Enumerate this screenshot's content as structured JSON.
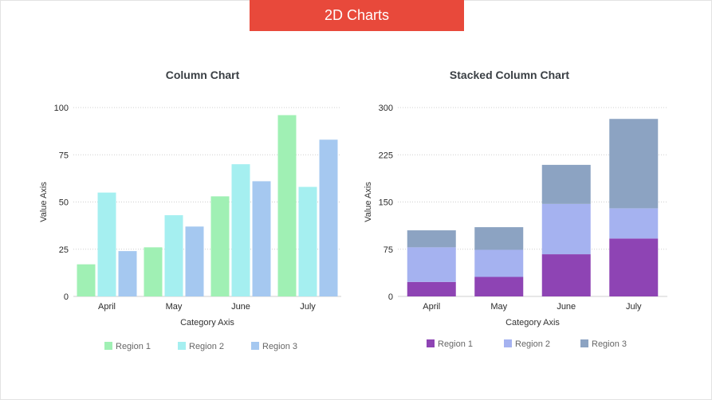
{
  "header": {
    "title": "2D Charts"
  },
  "chart_data": [
    {
      "type": "bar",
      "title": "Column Chart",
      "xlabel": "Category Axis",
      "ylabel": "Value Axis",
      "ylim": [
        0,
        100
      ],
      "yticks": [
        0,
        25,
        50,
        75,
        100
      ],
      "categories": [
        "April",
        "May",
        "June",
        "July"
      ],
      "series": [
        {
          "name": "Region 1",
          "color": "#a0f0b4",
          "values": [
            17,
            26,
            53,
            96
          ]
        },
        {
          "name": "Region 2",
          "color": "#a5eff0",
          "values": [
            55,
            43,
            70,
            58
          ]
        },
        {
          "name": "Region 3",
          "color": "#a5c8f0",
          "values": [
            24,
            37,
            61,
            83
          ]
        }
      ],
      "grid": true,
      "legend": "bottom"
    },
    {
      "type": "bar",
      "stacked": true,
      "title": "Stacked Column Chart",
      "xlabel": "Category Axis",
      "ylabel": "Value Axis",
      "ylim": [
        0,
        300
      ],
      "yticks": [
        0,
        75,
        150,
        225,
        300
      ],
      "categories": [
        "April",
        "May",
        "June",
        "July"
      ],
      "series": [
        {
          "name": "Region 1",
          "color": "#8e44b4",
          "values": [
            23,
            31,
            67,
            92
          ]
        },
        {
          "name": "Region 2",
          "color": "#a5b2f0",
          "values": [
            55,
            43,
            80,
            48
          ]
        },
        {
          "name": "Region 3",
          "color": "#8ca3c2",
          "values": [
            27,
            36,
            62,
            142
          ]
        }
      ],
      "grid": true,
      "legend": "bottom"
    }
  ]
}
